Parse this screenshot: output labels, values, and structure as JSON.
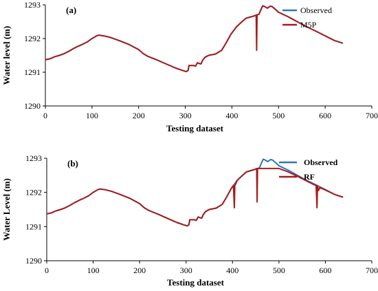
{
  "chart_data": [
    {
      "type": "line",
      "panel_label": "(a)",
      "xlabel": "Testing dataset",
      "ylabel": "Water level (m)",
      "xlim": [
        0,
        700
      ],
      "ylim": [
        1290,
        1293
      ],
      "xticks": [
        0,
        100,
        200,
        300,
        400,
        500,
        600,
        700
      ],
      "yticks": [
        1290,
        1291,
        1292,
        1293
      ],
      "legend_position": "top-right",
      "legend_bold": false,
      "series": [
        {
          "name": "Observed",
          "color": "#2E75B6",
          "points": [
            [
              0,
              1291.37
            ],
            [
              10,
              1291.4
            ],
            [
              20,
              1291.46
            ],
            [
              30,
              1291.5
            ],
            [
              40,
              1291.55
            ],
            [
              50,
              1291.62
            ],
            [
              60,
              1291.7
            ],
            [
              70,
              1291.77
            ],
            [
              80,
              1291.83
            ],
            [
              90,
              1291.9
            ],
            [
              100,
              1292.0
            ],
            [
              110,
              1292.08
            ],
            [
              115,
              1292.1
            ],
            [
              125,
              1292.08
            ],
            [
              140,
              1292.03
            ],
            [
              160,
              1291.93
            ],
            [
              180,
              1291.82
            ],
            [
              200,
              1291.67
            ],
            [
              210,
              1291.55
            ],
            [
              220,
              1291.47
            ],
            [
              240,
              1291.36
            ],
            [
              260,
              1291.24
            ],
            [
              280,
              1291.12
            ],
            [
              295,
              1291.05
            ],
            [
              302,
              1291.02
            ],
            [
              306,
              1291.05
            ],
            [
              308,
              1291.2
            ],
            [
              318,
              1291.2
            ],
            [
              322,
              1291.18
            ],
            [
              326,
              1291.28
            ],
            [
              332,
              1291.25
            ],
            [
              334,
              1291.25
            ],
            [
              337,
              1291.35
            ],
            [
              342,
              1291.44
            ],
            [
              350,
              1291.5
            ],
            [
              365,
              1291.54
            ],
            [
              378,
              1291.65
            ],
            [
              388,
              1291.88
            ],
            [
              398,
              1292.13
            ],
            [
              410,
              1292.35
            ],
            [
              420,
              1292.48
            ],
            [
              430,
              1292.6
            ],
            [
              440,
              1292.64
            ],
            [
              450,
              1292.68
            ],
            [
              454,
              1292.7
            ],
            [
              458,
              1292.72
            ],
            [
              462,
              1292.85
            ],
            [
              466,
              1292.97
            ],
            [
              470,
              1292.95
            ],
            [
              476,
              1292.9
            ],
            [
              482,
              1292.96
            ],
            [
              486,
              1292.95
            ],
            [
              492,
              1292.88
            ],
            [
              500,
              1292.78
            ],
            [
              520,
              1292.65
            ],
            [
              540,
              1292.5
            ],
            [
              560,
              1292.35
            ],
            [
              580,
              1292.22
            ],
            [
              600,
              1292.08
            ],
            [
              620,
              1291.94
            ],
            [
              638,
              1291.86
            ]
          ]
        },
        {
          "name": "M5P",
          "color": "#A61C1C",
          "points": [
            [
              0,
              1291.37
            ],
            [
              10,
              1291.4
            ],
            [
              20,
              1291.46
            ],
            [
              30,
              1291.5
            ],
            [
              40,
              1291.55
            ],
            [
              50,
              1291.62
            ],
            [
              60,
              1291.7
            ],
            [
              70,
              1291.77
            ],
            [
              80,
              1291.83
            ],
            [
              90,
              1291.9
            ],
            [
              100,
              1292.0
            ],
            [
              110,
              1292.08
            ],
            [
              115,
              1292.1
            ],
            [
              125,
              1292.08
            ],
            [
              140,
              1292.03
            ],
            [
              160,
              1291.93
            ],
            [
              180,
              1291.82
            ],
            [
              200,
              1291.67
            ],
            [
              210,
              1291.55
            ],
            [
              220,
              1291.47
            ],
            [
              240,
              1291.36
            ],
            [
              260,
              1291.24
            ],
            [
              280,
              1291.12
            ],
            [
              295,
              1291.05
            ],
            [
              302,
              1291.02
            ],
            [
              306,
              1291.05
            ],
            [
              308,
              1291.2
            ],
            [
              318,
              1291.2
            ],
            [
              322,
              1291.18
            ],
            [
              326,
              1291.28
            ],
            [
              332,
              1291.25
            ],
            [
              334,
              1291.25
            ],
            [
              337,
              1291.35
            ],
            [
              342,
              1291.44
            ],
            [
              350,
              1291.5
            ],
            [
              365,
              1291.54
            ],
            [
              378,
              1291.65
            ],
            [
              388,
              1291.88
            ],
            [
              398,
              1292.13
            ],
            [
              410,
              1292.35
            ],
            [
              420,
              1292.48
            ],
            [
              430,
              1292.6
            ],
            [
              440,
              1292.64
            ],
            [
              450,
              1292.68
            ],
            [
              452,
              1292.7
            ],
            [
              453,
              1291.65
            ],
            [
              454,
              1292.7
            ],
            [
              458,
              1292.72
            ],
            [
              462,
              1292.85
            ],
            [
              466,
              1292.97
            ],
            [
              470,
              1292.95
            ],
            [
              476,
              1292.9
            ],
            [
              482,
              1292.96
            ],
            [
              486,
              1292.95
            ],
            [
              492,
              1292.88
            ],
            [
              500,
              1292.78
            ],
            [
              520,
              1292.65
            ],
            [
              540,
              1292.5
            ],
            [
              560,
              1292.35
            ],
            [
              580,
              1292.22
            ],
            [
              600,
              1292.08
            ],
            [
              620,
              1291.94
            ],
            [
              638,
              1291.86
            ]
          ]
        }
      ]
    },
    {
      "type": "line",
      "panel_label": "(b)",
      "xlabel": "Testing dataset",
      "ylabel": "Water Level (m)",
      "xlim": [
        0,
        700
      ],
      "ylim": [
        1290,
        1293
      ],
      "xticks": [
        0,
        100,
        200,
        300,
        400,
        500,
        600,
        700
      ],
      "yticks": [
        1290,
        1291,
        1292,
        1293
      ],
      "legend_position": "top-right",
      "legend_bold": true,
      "series": [
        {
          "name": "Observed",
          "color": "#2E75B6",
          "points": [
            [
              0,
              1291.37
            ],
            [
              10,
              1291.4
            ],
            [
              20,
              1291.46
            ],
            [
              30,
              1291.5
            ],
            [
              40,
              1291.55
            ],
            [
              50,
              1291.62
            ],
            [
              60,
              1291.7
            ],
            [
              70,
              1291.77
            ],
            [
              80,
              1291.83
            ],
            [
              90,
              1291.9
            ],
            [
              100,
              1292.0
            ],
            [
              110,
              1292.08
            ],
            [
              115,
              1292.1
            ],
            [
              125,
              1292.08
            ],
            [
              140,
              1292.03
            ],
            [
              160,
              1291.93
            ],
            [
              180,
              1291.82
            ],
            [
              200,
              1291.67
            ],
            [
              210,
              1291.55
            ],
            [
              220,
              1291.47
            ],
            [
              240,
              1291.36
            ],
            [
              260,
              1291.24
            ],
            [
              280,
              1291.12
            ],
            [
              295,
              1291.05
            ],
            [
              302,
              1291.02
            ],
            [
              306,
              1291.05
            ],
            [
              308,
              1291.2
            ],
            [
              318,
              1291.2
            ],
            [
              322,
              1291.18
            ],
            [
              326,
              1291.28
            ],
            [
              332,
              1291.25
            ],
            [
              334,
              1291.25
            ],
            [
              337,
              1291.35
            ],
            [
              342,
              1291.44
            ],
            [
              350,
              1291.5
            ],
            [
              365,
              1291.54
            ],
            [
              378,
              1291.65
            ],
            [
              388,
              1291.88
            ],
            [
              398,
              1292.13
            ],
            [
              410,
              1292.35
            ],
            [
              420,
              1292.48
            ],
            [
              430,
              1292.6
            ],
            [
              440,
              1292.64
            ],
            [
              450,
              1292.68
            ],
            [
              454,
              1292.7
            ],
            [
              458,
              1292.72
            ],
            [
              462,
              1292.85
            ],
            [
              466,
              1292.97
            ],
            [
              470,
              1292.95
            ],
            [
              476,
              1292.9
            ],
            [
              482,
              1292.96
            ],
            [
              486,
              1292.95
            ],
            [
              492,
              1292.88
            ],
            [
              500,
              1292.78
            ],
            [
              520,
              1292.65
            ],
            [
              540,
              1292.5
            ],
            [
              560,
              1292.35
            ],
            [
              580,
              1292.22
            ],
            [
              600,
              1292.08
            ],
            [
              620,
              1291.94
            ],
            [
              638,
              1291.86
            ]
          ]
        },
        {
          "name": "RF",
          "color": "#A61C1C",
          "points": [
            [
              0,
              1291.37
            ],
            [
              10,
              1291.4
            ],
            [
              20,
              1291.46
            ],
            [
              30,
              1291.5
            ],
            [
              40,
              1291.55
            ],
            [
              50,
              1291.62
            ],
            [
              60,
              1291.7
            ],
            [
              70,
              1291.77
            ],
            [
              80,
              1291.83
            ],
            [
              90,
              1291.9
            ],
            [
              100,
              1292.0
            ],
            [
              110,
              1292.08
            ],
            [
              115,
              1292.1
            ],
            [
              125,
              1292.08
            ],
            [
              140,
              1292.03
            ],
            [
              160,
              1291.93
            ],
            [
              180,
              1291.82
            ],
            [
              200,
              1291.67
            ],
            [
              210,
              1291.55
            ],
            [
              220,
              1291.47
            ],
            [
              240,
              1291.36
            ],
            [
              260,
              1291.24
            ],
            [
              280,
              1291.12
            ],
            [
              295,
              1291.05
            ],
            [
              302,
              1291.02
            ],
            [
              306,
              1291.05
            ],
            [
              308,
              1291.2
            ],
            [
              318,
              1291.2
            ],
            [
              322,
              1291.18
            ],
            [
              326,
              1291.28
            ],
            [
              332,
              1291.25
            ],
            [
              334,
              1291.25
            ],
            [
              337,
              1291.35
            ],
            [
              342,
              1291.44
            ],
            [
              350,
              1291.5
            ],
            [
              365,
              1291.54
            ],
            [
              378,
              1291.65
            ],
            [
              388,
              1291.88
            ],
            [
              398,
              1292.13
            ],
            [
              402,
              1292.2
            ],
            [
              404,
              1291.55
            ],
            [
              405,
              1292.2
            ],
            [
              407,
              1292.25
            ],
            [
              410,
              1292.35
            ],
            [
              420,
              1292.48
            ],
            [
              430,
              1292.6
            ],
            [
              440,
              1292.64
            ],
            [
              450,
              1292.68
            ],
            [
              452,
              1292.7
            ],
            [
              453,
              1291.72
            ],
            [
              454,
              1292.7
            ],
            [
              470,
              1292.7
            ],
            [
              480,
              1292.7
            ],
            [
              500,
              1292.7
            ],
            [
              520,
              1292.6
            ],
            [
              540,
              1292.47
            ],
            [
              560,
              1292.33
            ],
            [
              575,
              1292.23
            ],
            [
              580,
              1292.2
            ],
            [
              582,
              1291.55
            ],
            [
              583,
              1292.2
            ],
            [
              585,
              1292.05
            ],
            [
              588,
              1292.14
            ],
            [
              600,
              1292.07
            ],
            [
              620,
              1291.94
            ],
            [
              638,
              1291.86
            ]
          ]
        }
      ]
    }
  ]
}
